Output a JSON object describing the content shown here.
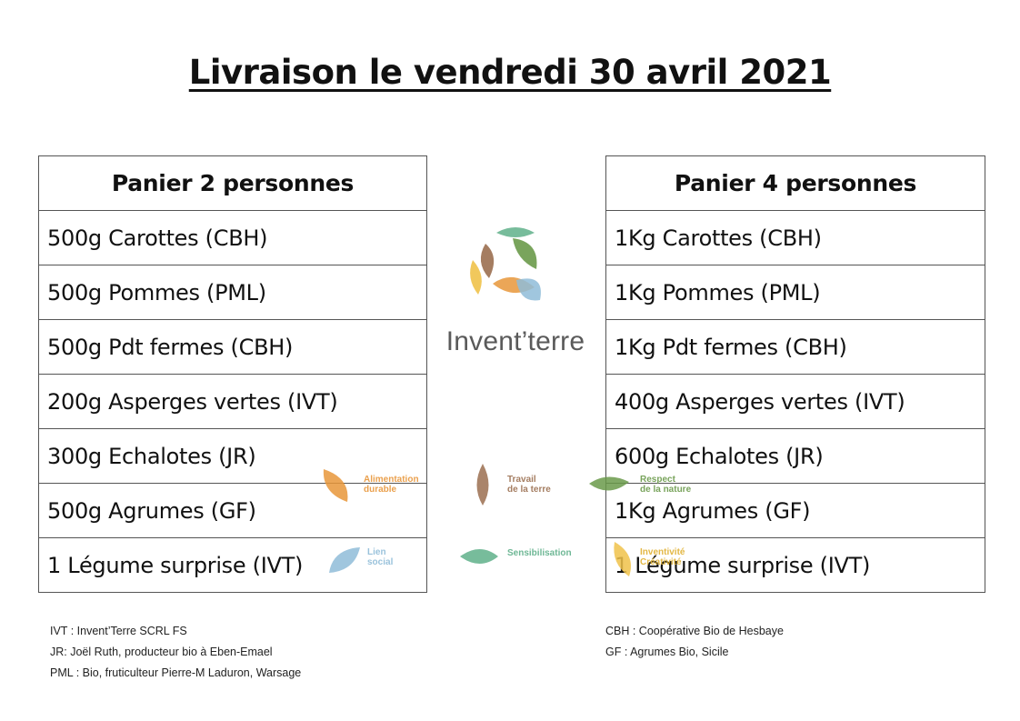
{
  "title": "Livraison le vendredi 30 avril 2021",
  "basket_2": {
    "header": "Panier 2 personnes",
    "items": [
      "500g Carottes (CBH)",
      "500g Pommes (PML)",
      "500g Pdt fermes (CBH)",
      "200g Asperges vertes (IVT)",
      "300g Echalotes (JR)",
      "500g Agrumes (GF)",
      "1 Légume surprise (IVT)"
    ]
  },
  "basket_4": {
    "header": "Panier 4 personnes",
    "items": [
      "1Kg Carottes (CBH)",
      "1Kg Pommes (PML)",
      "1Kg Pdt fermes (CBH)",
      "400g Asperges vertes (IVT)",
      "600g Echalotes (JR)",
      "1Kg Agrumes (GF)",
      "1 Légume surprise (IVT)"
    ]
  },
  "logo": {
    "name": "Invent’terre",
    "colors": {
      "green": "#6a9a4a",
      "teal": "#5fb08a",
      "brown": "#9b6f50",
      "orange": "#e8963a",
      "blue": "#8fbcd8",
      "yellow": "#f0c24a"
    }
  },
  "values": [
    {
      "label": "Alimentation\ndurable",
      "color": "#e8963a",
      "icon": "orange-leaf-icon"
    },
    {
      "label": "Travail\nde la terre",
      "color": "#9b6f50",
      "icon": "brown-leaf-icon"
    },
    {
      "label": "Respect\nde la nature",
      "color": "#6a9a4a",
      "icon": "green-leaf-icon"
    },
    {
      "label": "Lien\nsocial",
      "color": "#8fbcd8",
      "icon": "blue-leaf-icon"
    },
    {
      "label": "Sensibilisation",
      "color": "#5fb08a",
      "icon": "teal-leaf-icon"
    },
    {
      "label": "Inventivité\nCréativité",
      "color": "#f0c24a",
      "icon": "yellow-leaf-icon"
    }
  ],
  "footnotes_left": [
    "IVT : Invent’Terre SCRL FS",
    "JR: Joël Ruth, producteur bio à Eben-Emael",
    "PML : Bio, fruticulteur Pierre-M Laduron, Warsage"
  ],
  "footnotes_right": [
    "CBH : Coopérative Bio de Hesbaye",
    "GF : Agrumes Bio, Sicile"
  ]
}
